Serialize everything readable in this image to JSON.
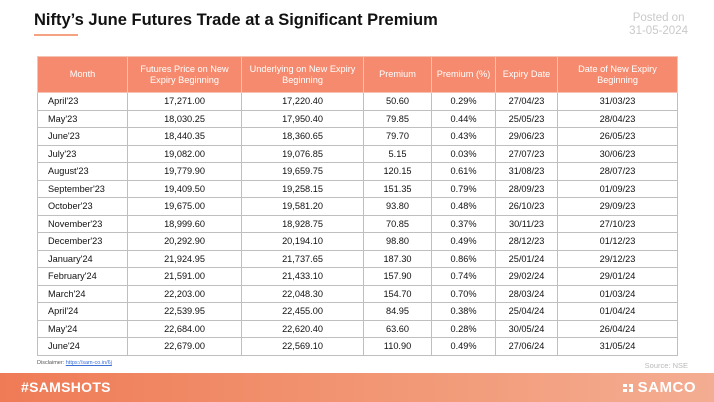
{
  "title": "Nifty’s June Futures Trade at a Significant Premium",
  "posted_label": "Posted on",
  "posted_date": "31-05-2024",
  "headers": [
    "Month",
    "Futures Price on New Expiry Beginning",
    "Underlying on New Expiry Beginning",
    "Premium",
    "Premium (%)",
    "Expiry Date",
    "Date of New Expiry Beginning"
  ],
  "rows": [
    [
      "April'23",
      "17,271.00",
      "17,220.40",
      "50.60",
      "0.29%",
      "27/04/23",
      "31/03/23"
    ],
    [
      "May'23",
      "18,030.25",
      "17,950.40",
      "79.85",
      "0.44%",
      "25/05/23",
      "28/04/23"
    ],
    [
      "June'23",
      "18,440.35",
      "18,360.65",
      "79.70",
      "0.43%",
      "29/06/23",
      "26/05/23"
    ],
    [
      "July'23",
      "19,082.00",
      "19,076.85",
      "5.15",
      "0.03%",
      "27/07/23",
      "30/06/23"
    ],
    [
      "August'23",
      "19,779.90",
      "19,659.75",
      "120.15",
      "0.61%",
      "31/08/23",
      "28/07/23"
    ],
    [
      "September'23",
      "19,409.50",
      "19,258.15",
      "151.35",
      "0.79%",
      "28/09/23",
      "01/09/23"
    ],
    [
      "October'23",
      "19,675.00",
      "19,581.20",
      "93.80",
      "0.48%",
      "26/10/23",
      "29/09/23"
    ],
    [
      "November'23",
      "18,999.60",
      "18,928.75",
      "70.85",
      "0.37%",
      "30/11/23",
      "27/10/23"
    ],
    [
      "December'23",
      "20,292.90",
      "20,194.10",
      "98.80",
      "0.49%",
      "28/12/23",
      "01/12/23"
    ],
    [
      "January'24",
      "21,924.95",
      "21,737.65",
      "187.30",
      "0.86%",
      "25/01/24",
      "29/12/23"
    ],
    [
      "February'24",
      "21,591.00",
      "21,433.10",
      "157.90",
      "0.74%",
      "29/02/24",
      "29/01/24"
    ],
    [
      "March'24",
      "22,203.00",
      "22,048.30",
      "154.70",
      "0.70%",
      "28/03/24",
      "01/03/24"
    ],
    [
      "April'24",
      "22,539.95",
      "22,455.00",
      "84.95",
      "0.38%",
      "25/04/24",
      "01/04/24"
    ],
    [
      "May'24",
      "22,684.00",
      "22,620.40",
      "63.60",
      "0.28%",
      "30/05/24",
      "26/04/24"
    ],
    [
      "June'24",
      "22,679.00",
      "22,569.10",
      "110.90",
      "0.49%",
      "27/06/24",
      "31/05/24"
    ]
  ],
  "disclaimer_label": "Disclaimer:",
  "disclaimer_link": "https://sam-co.in/6j",
  "source": "Source:  NSE",
  "hashtag": "#SAMSHOTS",
  "brand": "SAMCO",
  "colors": {
    "header_bg": "#f58a6e",
    "accent": "#ef7b56"
  },
  "icons": {
    "brand_logo": "samco-logo-icon"
  }
}
